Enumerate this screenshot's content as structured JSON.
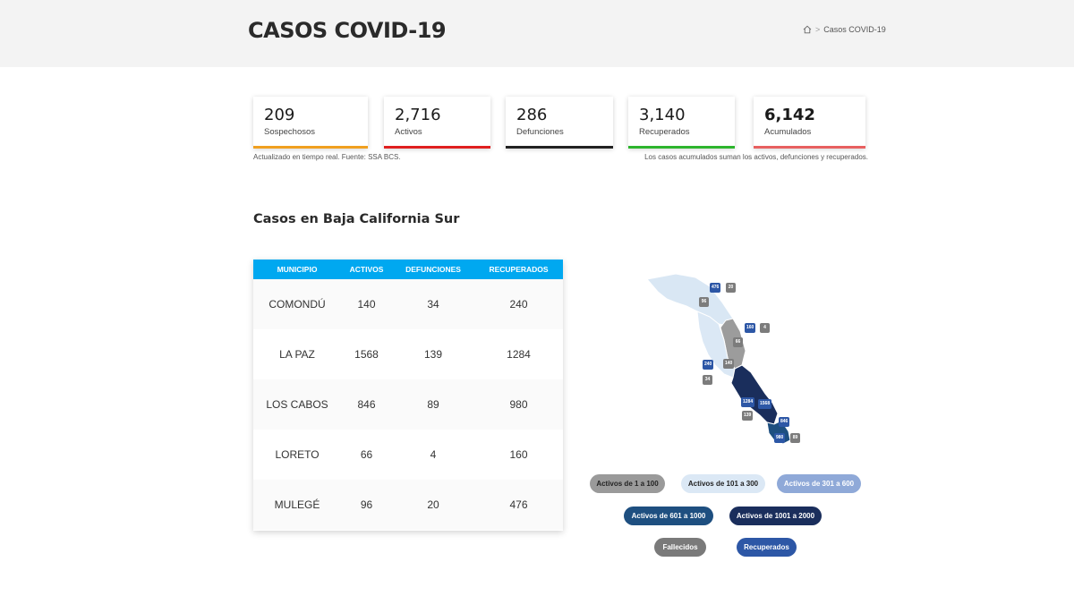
{
  "header": {
    "title": "CASOS COVID-19",
    "breadcrumb": {
      "current": "Casos COVID-19",
      "separator": ">"
    }
  },
  "stats": [
    {
      "value": "209",
      "label": "Sospechosos",
      "color": "#f0a020"
    },
    {
      "value": "2,716",
      "label": "Activos",
      "color": "#e02020"
    },
    {
      "value": "286",
      "label": "Defunciones",
      "color": "#222222"
    },
    {
      "value": "3,140",
      "label": "Recuperados",
      "color": "#2db52d"
    },
    {
      "value": "6,142",
      "label": "Acumulados",
      "color": "#e86060"
    }
  ],
  "notes": {
    "left": "Actualizado en tiempo real. Fuente: SSA BCS.",
    "right": "Los casos acumulados suman los activos, defunciones y recuperados."
  },
  "section_title": "Casos en Baja California Sur",
  "table": {
    "headers": [
      "MUNICIPIO",
      "ACTIVOS",
      "DEFUNCIONES",
      "RECUPERADOS"
    ],
    "rows": [
      [
        "COMONDÚ",
        "140",
        "34",
        "240"
      ],
      [
        "LA PAZ",
        "1568",
        "139",
        "1284"
      ],
      [
        "LOS CABOS",
        "846",
        "89",
        "980"
      ],
      [
        "LORETO",
        "66",
        "4",
        "160"
      ],
      [
        "MULEGÉ",
        "96",
        "20",
        "476"
      ]
    ],
    "header_color": "#00a8f0"
  },
  "map_labels": {
    "mulege_rec": "476",
    "mulege_def": "20",
    "mulege_act": "96",
    "loreto_rec": "160",
    "loreto_def": "4",
    "loreto_act": "66",
    "comondu_rec": "240",
    "comondu_act": "140",
    "comondu_def": "34",
    "lapaz_rec": "1284",
    "lapaz_act": "1568",
    "lapaz_def": "139",
    "cabos_act": "846",
    "cabos_rec": "980",
    "cabos_def": "89"
  },
  "legend": [
    {
      "label": "Activos de 1 a 100",
      "bg": "#9a9a9a",
      "fg": "#222222"
    },
    {
      "label": "Activos de 101 a 300",
      "bg": "#dbe8f5",
      "fg": "#222222"
    },
    {
      "label": "Activos de 301 a 600",
      "bg": "#8fa9d8",
      "fg": "#ffffff"
    },
    {
      "label": "Activos de 601 a 1000",
      "bg": "#1e4f80",
      "fg": "#ffffff"
    },
    {
      "label": "Activos de 1001 a 2000",
      "bg": "#1a2e5c",
      "fg": "#ffffff"
    },
    {
      "label": "Fallecidos",
      "bg": "#7a7a7a",
      "fg": "#ffffff"
    },
    {
      "label": "Recuperados",
      "bg": "#2d57a6",
      "fg": "#ffffff"
    }
  ]
}
